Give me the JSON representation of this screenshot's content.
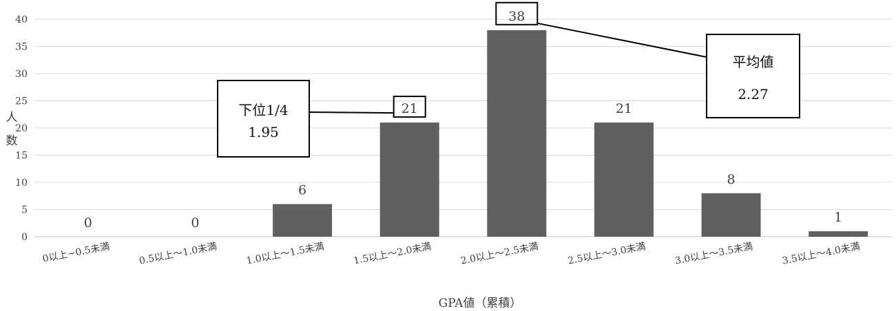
{
  "chart_data": {
    "type": "bar",
    "categories": [
      "0以上~0.5未満",
      "0.5以上～1.0未満",
      "1.0以上～1.5未満",
      "1.5以上～2.0未満",
      "2.0以上～2.5未満",
      "2.5以上～3.0未満",
      "3.0以上～3.5未満",
      "3.5以上～4.0未満"
    ],
    "values": [
      0,
      0,
      6,
      21,
      38,
      21,
      8,
      1
    ],
    "data_labels": [
      "0",
      "0",
      "6",
      "21",
      "38",
      "21",
      "8",
      "1"
    ],
    "xlabel": "GPA値（累積）",
    "ylabel_chars": [
      "人",
      "数"
    ],
    "ylim": [
      0,
      40
    ],
    "yticks": [
      0,
      5,
      10,
      15,
      20,
      25,
      30,
      35,
      40
    ],
    "grid": true,
    "bar_color": "#606060",
    "annotations": [
      {
        "lines": [
          "下位1/4",
          "1.95"
        ],
        "target_index": 3
      },
      {
        "lines": [
          "平均値",
          "2.27"
        ],
        "target_index": 4
      }
    ]
  }
}
